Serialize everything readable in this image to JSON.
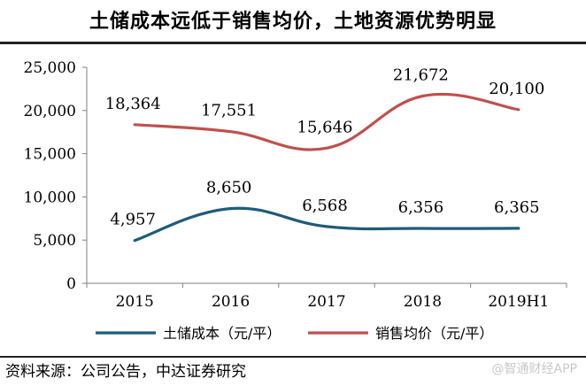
{
  "title": "土储成本远低于销售均价，土地资源优势明显",
  "source": "资料来源：公司公告，中达证券研究",
  "watermark": "@智通财经APP",
  "chart_data": {
    "type": "line",
    "title": "土储成本远低于销售均价，土地资源优势明显",
    "categories": [
      "2015",
      "2016",
      "2017",
      "2018",
      "2019H1"
    ],
    "ylim": [
      0,
      25000
    ],
    "yticks": [
      0,
      5000,
      10000,
      15000,
      20000,
      25000
    ],
    "ytick_labels": [
      "0",
      "5,000",
      "10,000",
      "15,000",
      "20,000",
      "25,000"
    ],
    "grid": false,
    "legend_position": "bottom",
    "series": [
      {
        "name": "土储成本（元/平）",
        "color": "#1f5b7a",
        "values": [
          4957,
          8650,
          6568,
          6356,
          6365
        ],
        "labels": [
          "4,957",
          "8,650",
          "6,568",
          "6,356",
          "6,365"
        ]
      },
      {
        "name": "销售均价（元/平）",
        "color": "#c0504d",
        "values": [
          18364,
          17551,
          15646,
          21672,
          20100
        ],
        "labels": [
          "18,364",
          "17,551",
          "15,646",
          "21,672",
          "20,100"
        ]
      }
    ]
  }
}
